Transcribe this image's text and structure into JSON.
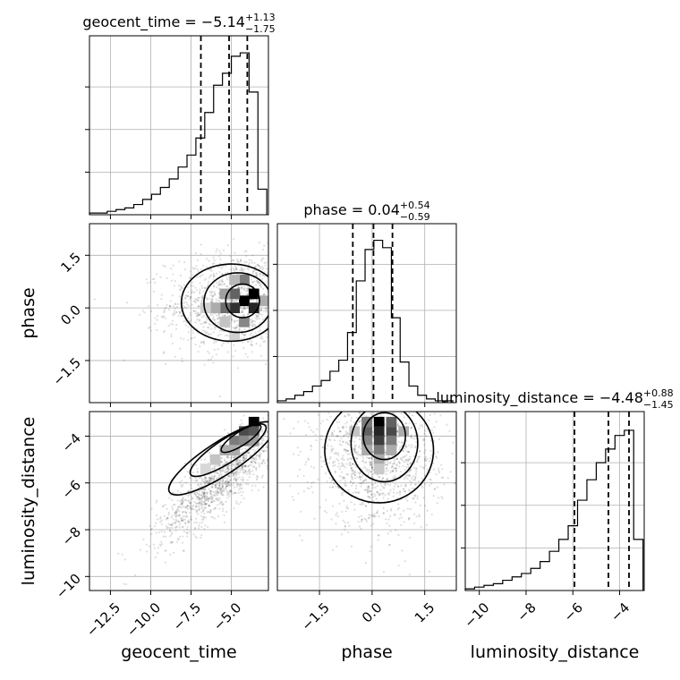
{
  "chart_data": {
    "type": "corner",
    "parameters": [
      {
        "name": "geocent_time",
        "axis_label": "geocent_time",
        "range": [
          -13.8,
          -2.7
        ],
        "ticks": [
          -12.5,
          -10.0,
          -7.5,
          -5.0
        ],
        "tick_labels": [
          "−12.5",
          "−10.0",
          "−7.5",
          "−5.0"
        ],
        "title": {
          "prefix": "geocent_time = −5.14",
          "upper": "+1.13",
          "lower": "−1.75"
        },
        "median": -5.14,
        "err_plus": 1.13,
        "err_minus": 1.75,
        "hist_bins": [
          -13.8,
          -13.25,
          -12.7,
          -12.15,
          -11.6,
          -11.05,
          -10.5,
          -9.95,
          -9.4,
          -8.85,
          -8.3,
          -7.75,
          -7.2,
          -6.65,
          -6.1,
          -5.55,
          -5.0,
          -4.45,
          -3.9,
          -3.35,
          -2.8
        ],
        "hist_counts": [
          0.01,
          0.01,
          0.02,
          0.03,
          0.04,
          0.06,
          0.09,
          0.12,
          0.16,
          0.21,
          0.28,
          0.35,
          0.45,
          0.6,
          0.76,
          0.83,
          0.93,
          0.95,
          0.72,
          0.15
        ],
        "hist_ylim": [
          0,
          1.05
        ],
        "hist_yticks": [
          0.25,
          0.5,
          0.75
        ]
      },
      {
        "name": "phase",
        "axis_label": "phase",
        "range": [
          -2.7,
          2.4
        ],
        "ticks": [
          -1.5,
          0.0,
          1.5
        ],
        "tick_labels": [
          "−1.5",
          "0.0",
          "1.5"
        ],
        "title": {
          "prefix": "phase = 0.04",
          "upper": "+0.54",
          "lower": "−0.59"
        },
        "median": 0.04,
        "err_plus": 0.54,
        "err_minus": 0.59,
        "hist_bins": [
          -2.7,
          -2.45,
          -2.2,
          -1.95,
          -1.7,
          -1.45,
          -1.2,
          -0.95,
          -0.7,
          -0.45,
          -0.2,
          0.05,
          0.3,
          0.55,
          0.8,
          1.05,
          1.3,
          1.55,
          1.8,
          2.05,
          2.3
        ],
        "hist_counts": [
          0.01,
          0.02,
          0.04,
          0.06,
          0.09,
          0.12,
          0.17,
          0.23,
          0.38,
          0.66,
          0.83,
          0.88,
          0.84,
          0.46,
          0.22,
          0.09,
          0.04,
          0.02,
          0.01,
          0.01
        ],
        "hist_ylim": [
          0,
          0.97
        ],
        "hist_yticks": [
          0.25,
          0.5,
          0.75
        ]
      },
      {
        "name": "luminosity_distance",
        "axis_label": "luminosity_distance",
        "range": [
          -10.6,
          -2.95
        ],
        "ticks": [
          -10,
          -8,
          -6,
          -4
        ],
        "tick_labels": [
          "−10",
          "−8",
          "−6",
          "−4"
        ],
        "title": {
          "prefix": "luminosity_distance = −4.48",
          "upper": "+0.88",
          "lower": "−1.45"
        },
        "median": -4.48,
        "err_plus": 0.88,
        "err_minus": 1.45,
        "hist_bins": [
          -10.6,
          -10.2,
          -9.8,
          -9.4,
          -9.0,
          -8.6,
          -8.2,
          -7.8,
          -7.4,
          -7.0,
          -6.6,
          -6.2,
          -5.8,
          -5.4,
          -5.0,
          -4.6,
          -4.2,
          -3.8,
          -3.4,
          -3.0
        ],
        "hist_counts": [
          0.01,
          0.02,
          0.03,
          0.04,
          0.06,
          0.08,
          0.1,
          0.13,
          0.17,
          0.23,
          0.3,
          0.38,
          0.53,
          0.65,
          0.75,
          0.83,
          0.91,
          0.94,
          0.3
        ],
        "hist_ylim": [
          0,
          1.05
        ],
        "hist_yticks": [
          0.25,
          0.5,
          0.75
        ]
      }
    ],
    "joint": [
      {
        "x_param": "geocent_time",
        "y_param": "phase",
        "mean": [
          -4.6,
          0.2
        ],
        "sd": [
          2.2,
          0.7
        ],
        "corr": 0.1,
        "density_cells": [
          {
            "x": -4.2,
            "y": 0.2,
            "v": 1.0
          },
          {
            "x": -3.6,
            "y": 0.4,
            "v": 1.0
          },
          {
            "x": -4.8,
            "y": 0.0,
            "v": 0.8
          },
          {
            "x": -3.6,
            "y": 0.0,
            "v": 0.85
          },
          {
            "x": -5.4,
            "y": 0.0,
            "v": 0.55
          },
          {
            "x": -4.8,
            "y": 0.4,
            "v": 0.6
          },
          {
            "x": -4.2,
            "y": 0.8,
            "v": 0.5
          },
          {
            "x": -4.2,
            "y": -0.4,
            "v": 0.45
          },
          {
            "x": -6.0,
            "y": 0.0,
            "v": 0.3
          },
          {
            "x": -5.4,
            "y": 0.4,
            "v": 0.35
          },
          {
            "x": -3.0,
            "y": 0.2,
            "v": 0.3
          },
          {
            "x": -6.6,
            "y": 0.0,
            "v": 0.15
          },
          {
            "x": -5.4,
            "y": -0.4,
            "v": 0.2
          },
          {
            "x": -4.8,
            "y": -0.8,
            "v": 0.15
          },
          {
            "x": -4.8,
            "y": 0.8,
            "v": 0.25
          }
        ],
        "contours": [
          {
            "cx": -4.3,
            "cy": 0.2,
            "rx": 1.05,
            "ry": 0.48,
            "rot": 0
          },
          {
            "cx": -4.6,
            "cy": 0.15,
            "rx": 2.1,
            "ry": 0.85,
            "rot": 0
          },
          {
            "cx": -5.0,
            "cy": 0.15,
            "rx": 3.1,
            "ry": 1.1,
            "rot": 0
          }
        ]
      },
      {
        "x_param": "geocent_time",
        "y_param": "luminosity_distance",
        "mean": [
          -5.6,
          -5.8
        ],
        "sd": [
          2.0,
          1.3
        ],
        "corr": 0.85,
        "density_cells": [
          {
            "x": -3.6,
            "y": -3.4,
            "v": 1.0
          },
          {
            "x": -4.2,
            "y": -3.8,
            "v": 0.7
          },
          {
            "x": -3.6,
            "y": -3.8,
            "v": 0.65
          },
          {
            "x": -4.8,
            "y": -4.2,
            "v": 0.5
          },
          {
            "x": -4.2,
            "y": -4.2,
            "v": 0.45
          },
          {
            "x": -5.4,
            "y": -4.6,
            "v": 0.3
          },
          {
            "x": -4.8,
            "y": -4.6,
            "v": 0.3
          },
          {
            "x": -6.0,
            "y": -5.0,
            "v": 0.2
          },
          {
            "x": -3.6,
            "y": -4.2,
            "v": 0.35
          },
          {
            "x": -6.6,
            "y": -5.4,
            "v": 0.12
          }
        ],
        "contours": [
          {
            "cx": -4.4,
            "cy": -4.1,
            "rx": 1.2,
            "ry": 0.35,
            "rot": 33
          },
          {
            "cx": -5.2,
            "cy": -4.6,
            "rx": 2.3,
            "ry": 0.6,
            "rot": 33
          },
          {
            "cx": -5.6,
            "cy": -4.95,
            "rx": 3.2,
            "ry": 0.85,
            "rot": 33
          }
        ]
      },
      {
        "x_param": "phase",
        "y_param": "luminosity_distance",
        "mean": [
          0.15,
          -5.0
        ],
        "sd": [
          0.9,
          1.4
        ],
        "corr": 0.0,
        "density_cells": [
          {
            "x": 0.2,
            "y": -3.4,
            "v": 1.0
          },
          {
            "x": 0.2,
            "y": -3.8,
            "v": 0.85
          },
          {
            "x": 0.55,
            "y": -3.8,
            "v": 0.7
          },
          {
            "x": -0.15,
            "y": -3.8,
            "v": 0.6
          },
          {
            "x": 0.2,
            "y": -4.2,
            "v": 0.75
          },
          {
            "x": 0.55,
            "y": -4.2,
            "v": 0.5
          },
          {
            "x": -0.15,
            "y": -4.2,
            "v": 0.45
          },
          {
            "x": 0.2,
            "y": -4.6,
            "v": 0.5
          },
          {
            "x": 0.55,
            "y": -4.6,
            "v": 0.3
          },
          {
            "x": -0.15,
            "y": -4.6,
            "v": 0.3
          },
          {
            "x": 0.2,
            "y": -5.0,
            "v": 0.3
          },
          {
            "x": 0.55,
            "y": -3.4,
            "v": 0.6
          },
          {
            "x": -0.15,
            "y": -3.4,
            "v": 0.5
          },
          {
            "x": 0.9,
            "y": -3.8,
            "v": 0.3
          },
          {
            "x": 0.2,
            "y": -5.4,
            "v": 0.18
          },
          {
            "x": -0.5,
            "y": -3.8,
            "v": 0.2
          }
        ],
        "contours": [
          {
            "cx": 0.35,
            "cy": -4.0,
            "rx": 0.6,
            "ry": 1.0,
            "rot": 0
          },
          {
            "cx": 0.35,
            "cy": -4.3,
            "rx": 0.95,
            "ry": 1.65,
            "rot": 0
          },
          {
            "cx": 0.2,
            "cy": -4.6,
            "rx": 1.55,
            "ry": 2.25,
            "rot": 0
          }
        ]
      }
    ]
  }
}
